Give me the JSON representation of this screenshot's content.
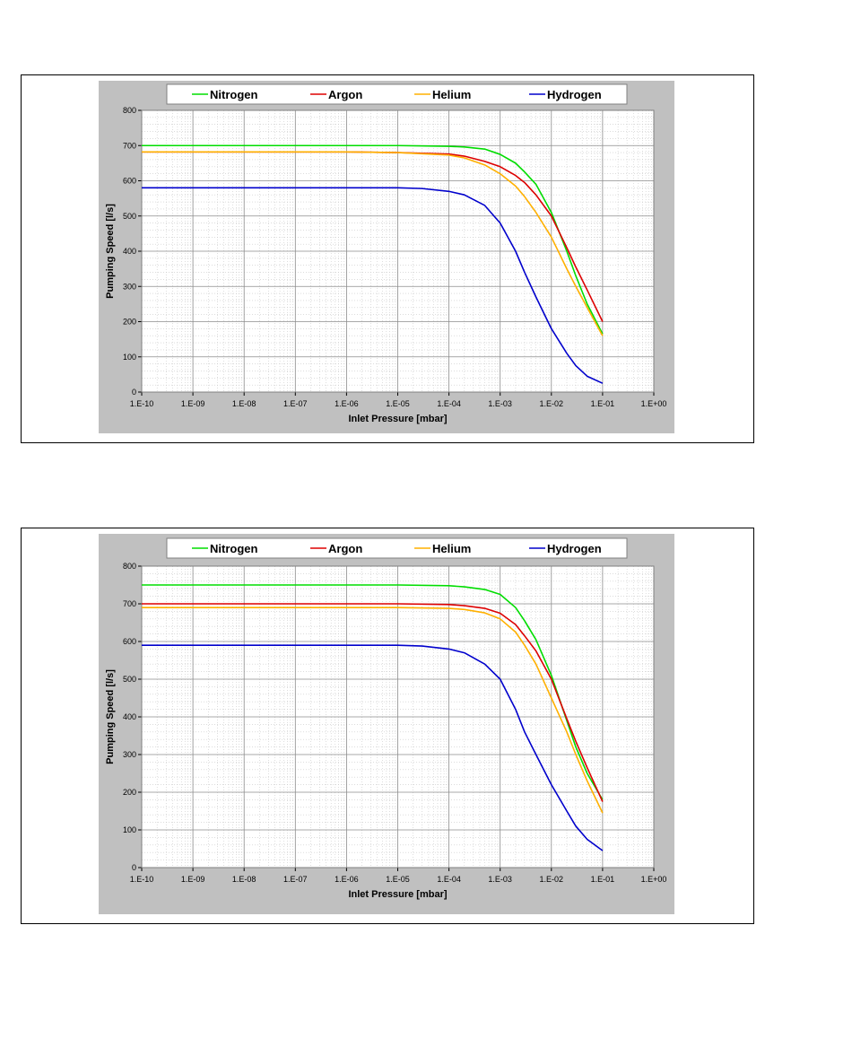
{
  "chart_data": [
    {
      "type": "line",
      "xscale": "log",
      "xlabel": "Inlet Pressure [mbar]",
      "ylabel": "Pumping Speed [l/s]",
      "xlim": [
        1e-10,
        1
      ],
      "ylim": [
        0,
        800
      ],
      "x_ticks": [
        "1.E-10",
        "1.E-09",
        "1.E-08",
        "1.E-07",
        "1.E-06",
        "1.E-05",
        "1.E-04",
        "1.E-03",
        "1.E-02",
        "1.E-01",
        "1.E+00"
      ],
      "y_ticks": [
        "0",
        "100",
        "200",
        "300",
        "400",
        "500",
        "600",
        "700",
        "800"
      ],
      "grid": true,
      "legend_position": "top",
      "series": [
        {
          "name": "Nitrogen",
          "color": "#00dd00",
          "x": [
            1e-10,
            1e-06,
            1e-05,
            0.0001,
            0.0002,
            0.0005,
            0.001,
            0.002,
            0.003,
            0.005,
            0.01,
            0.02,
            0.03,
            0.05,
            0.1
          ],
          "y": [
            700,
            700,
            700,
            698,
            696,
            690,
            675,
            650,
            625,
            590,
            510,
            400,
            330,
            250,
            165
          ]
        },
        {
          "name": "Argon",
          "color": "#dd0000",
          "x": [
            1e-10,
            1e-06,
            1e-05,
            0.0001,
            0.0002,
            0.0005,
            0.001,
            0.002,
            0.003,
            0.005,
            0.01,
            0.02,
            0.03,
            0.05,
            0.1
          ],
          "y": [
            682,
            682,
            680,
            676,
            670,
            655,
            640,
            615,
            595,
            560,
            500,
            410,
            355,
            290,
            200
          ]
        },
        {
          "name": "Helium",
          "color": "#ffb000",
          "x": [
            1e-10,
            1e-06,
            1e-05,
            0.0001,
            0.0002,
            0.0005,
            0.001,
            0.002,
            0.003,
            0.005,
            0.01,
            0.02,
            0.03,
            0.05,
            0.1
          ],
          "y": [
            682,
            682,
            680,
            673,
            665,
            645,
            620,
            585,
            555,
            510,
            440,
            350,
            300,
            240,
            160
          ]
        },
        {
          "name": "Hydrogen",
          "color": "#0000cc",
          "x": [
            1e-10,
            1e-06,
            1e-05,
            3e-05,
            0.0001,
            0.0002,
            0.0005,
            0.001,
            0.002,
            0.003,
            0.005,
            0.01,
            0.02,
            0.03,
            0.05,
            0.1
          ],
          "y": [
            580,
            580,
            580,
            578,
            570,
            560,
            530,
            480,
            400,
            340,
            270,
            180,
            110,
            75,
            45,
            25
          ]
        }
      ]
    },
    {
      "type": "line",
      "xscale": "log",
      "xlabel": "Inlet Pressure [mbar]",
      "ylabel": "Pumping Speed [l/s]",
      "xlim": [
        1e-10,
        1
      ],
      "ylim": [
        0,
        800
      ],
      "x_ticks": [
        "1.E-10",
        "1.E-09",
        "1.E-08",
        "1.E-07",
        "1.E-06",
        "1.E-05",
        "1.E-04",
        "1.E-03",
        "1.E-02",
        "1.E-01",
        "1.E+00"
      ],
      "y_ticks": [
        "0",
        "100",
        "200",
        "300",
        "400",
        "500",
        "600",
        "700",
        "800"
      ],
      "grid": true,
      "legend_position": "top",
      "series": [
        {
          "name": "Nitrogen",
          "color": "#00dd00",
          "x": [
            1e-10,
            1e-06,
            1e-05,
            0.0001,
            0.0002,
            0.0005,
            0.001,
            0.002,
            0.003,
            0.005,
            0.01,
            0.02,
            0.03,
            0.05,
            0.1
          ],
          "y": [
            750,
            750,
            750,
            748,
            745,
            738,
            725,
            690,
            655,
            605,
            510,
            390,
            320,
            250,
            180
          ]
        },
        {
          "name": "Argon",
          "color": "#dd0000",
          "x": [
            1e-10,
            1e-06,
            1e-05,
            0.0001,
            0.0002,
            0.0005,
            0.001,
            0.002,
            0.003,
            0.005,
            0.01,
            0.02,
            0.03,
            0.05,
            0.1
          ],
          "y": [
            700,
            700,
            700,
            698,
            695,
            688,
            675,
            645,
            615,
            575,
            500,
            395,
            335,
            265,
            175
          ]
        },
        {
          "name": "Helium",
          "color": "#ffb000",
          "x": [
            1e-10,
            1e-06,
            1e-05,
            0.0001,
            0.0002,
            0.0005,
            0.001,
            0.002,
            0.003,
            0.005,
            0.01,
            0.02,
            0.03,
            0.05,
            0.1
          ],
          "y": [
            690,
            690,
            690,
            688,
            685,
            676,
            660,
            625,
            590,
            540,
            450,
            360,
            300,
            230,
            145
          ]
        },
        {
          "name": "Hydrogen",
          "color": "#0000cc",
          "x": [
            1e-10,
            1e-06,
            1e-05,
            3e-05,
            0.0001,
            0.0002,
            0.0005,
            0.001,
            0.002,
            0.003,
            0.005,
            0.01,
            0.02,
            0.03,
            0.05,
            0.1
          ],
          "y": [
            590,
            590,
            590,
            588,
            580,
            570,
            540,
            500,
            420,
            360,
            300,
            220,
            150,
            110,
            75,
            45
          ]
        }
      ]
    }
  ]
}
